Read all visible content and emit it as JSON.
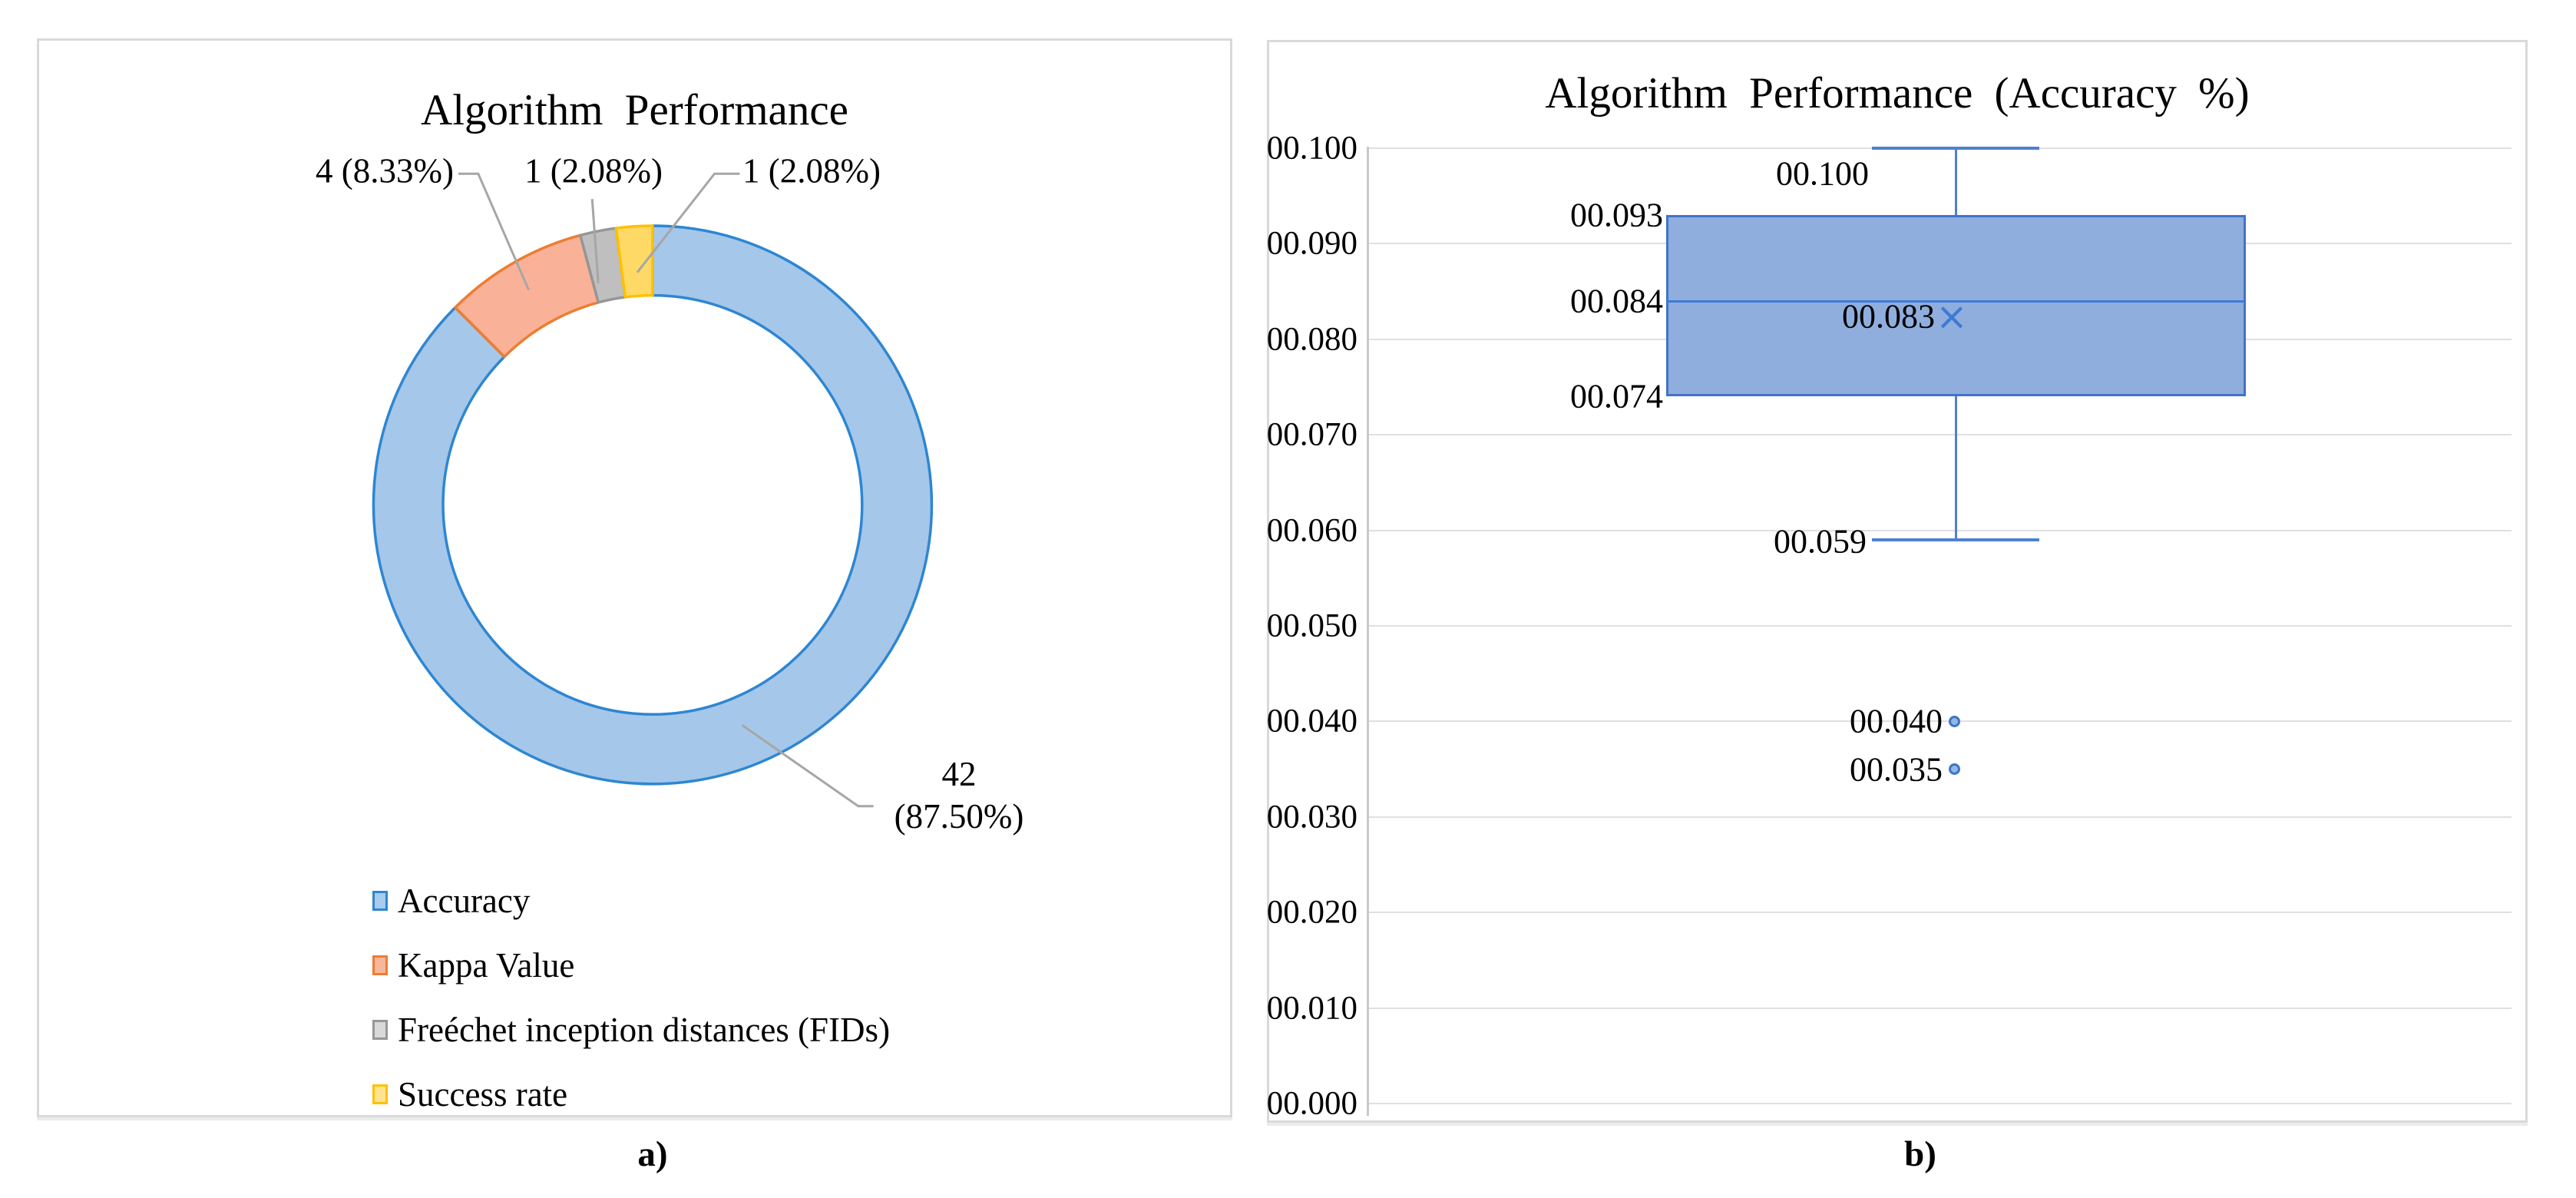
{
  "captions": {
    "a": "a)",
    "b": "b)"
  },
  "chart_data": [
    {
      "type": "pie",
      "subtype": "doughnut",
      "title": "Algorithm Performance",
      "total": 48,
      "legend_position": "bottom-left",
      "slices": [
        {
          "id": "accuracy",
          "label": "Accuracy",
          "value": 42,
          "percent": 87.5,
          "callout_line1": "42",
          "callout_line2": "(87.50%)",
          "fill": "#A5C7EA",
          "border": "#2E86D1",
          "swatch_fill": "#A9CBEE"
        },
        {
          "id": "kappa-value",
          "label": "Kappa Value",
          "value": 4,
          "percent": 8.33,
          "callout": "4 (8.33%)",
          "fill": "#F9B297",
          "border": "#ED7D31",
          "swatch_fill": "#F6B79D"
        },
        {
          "id": "fids",
          "label": "Freéchet inception distances (FIDs)",
          "value": 1,
          "percent": 2.08,
          "callout": "1 (2.08%)",
          "fill": "#BFBFBF",
          "border": "#969696",
          "swatch_fill": "#D9D9D9"
        },
        {
          "id": "success-rate",
          "label": "Success rate",
          "value": 1,
          "percent": 2.08,
          "callout": "1 (2.08%)",
          "fill": "#FFD966",
          "border": "#FFC000",
          "swatch_fill": "#FFE48F"
        }
      ],
      "leader_line_color": "#A6A6A6"
    },
    {
      "type": "box",
      "title": "Algorithm Performance (Accuracy %)",
      "ylim": [
        0.0,
        0.1
      ],
      "grid": true,
      "yticks": [
        "00.100",
        "00.090",
        "00.080",
        "00.070",
        "00.060",
        "00.050",
        "00.040",
        "00.030",
        "00.020",
        "00.010",
        "00.000"
      ],
      "stats": {
        "whisker_high": {
          "value": 0.1,
          "label": "00.100"
        },
        "q3": {
          "value": 0.093,
          "label": "00.093"
        },
        "median": {
          "value": 0.084,
          "label": "00.084"
        },
        "mean": {
          "value": 0.083,
          "label": "00.083"
        },
        "q1": {
          "value": 0.074,
          "label": "00.074"
        },
        "whisker_low": {
          "value": 0.059,
          "label": "00.059"
        },
        "outliers": [
          {
            "value": 0.04,
            "label": "00.040"
          },
          {
            "value": 0.035,
            "label": "00.035"
          }
        ]
      },
      "colors": {
        "box_fill": "#8FAEDE",
        "box_border": "#4173C9",
        "median_line": "#3D7AD5",
        "whisker": "#4E81CE",
        "mean_marker": "#3D7AD5",
        "gridline": "#E0E0E0",
        "axis_line": "#C9C9C9"
      }
    }
  ]
}
